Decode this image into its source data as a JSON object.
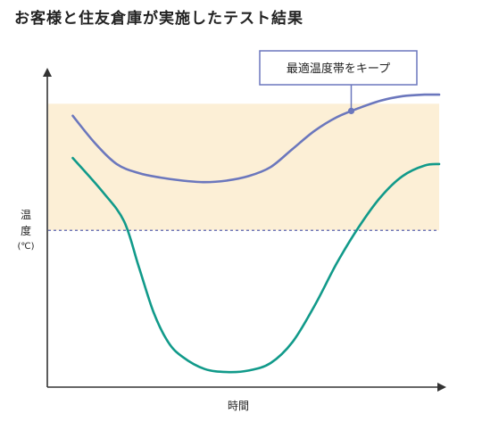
{
  "chart_data": {
    "type": "line",
    "title": "お客様と住友倉庫が実施したテスト結果",
    "xlabel": "時間",
    "ylabel": {
      "line1": "温",
      "line2": "度",
      "unit": "(℃)"
    },
    "annotation": "最適温度帯をキープ",
    "band_label": "最適温度帯",
    "colors": {
      "band": "#fcefd6",
      "series_blue": "#6b77bd",
      "series_green": "#119a8a",
      "threshold": "#5a64b0",
      "axis": "#333333"
    },
    "xlim": [
      0,
      100
    ],
    "ylim": [
      0,
      100
    ],
    "band": [
      52,
      94
    ],
    "threshold": 52,
    "series": [
      {
        "name": "",
        "color": "#6b77bd",
        "x": [
          0,
          6,
          12,
          18,
          24,
          30,
          36,
          42,
          48,
          54,
          60,
          66,
          72,
          78,
          84,
          90,
          96,
          100
        ],
        "y": [
          90,
          81,
          74,
          71,
          69.5,
          68.5,
          68,
          68.5,
          70,
          73,
          79,
          85,
          89.5,
          92.5,
          95,
          96.5,
          97,
          97
        ]
      },
      {
        "name": "",
        "color": "#119a8a",
        "x": [
          0,
          8,
          14,
          18,
          22,
          26,
          30,
          36,
          42,
          48,
          54,
          60,
          66,
          72,
          78,
          84,
          90,
          96,
          100
        ],
        "y": [
          76,
          65,
          55,
          40,
          25,
          15,
          10,
          6,
          5,
          5.5,
          8,
          15,
          27,
          41,
          53,
          63,
          70,
          73.5,
          74
        ]
      }
    ],
    "annotation_point": {
      "x": 76,
      "y": 91.6
    }
  }
}
